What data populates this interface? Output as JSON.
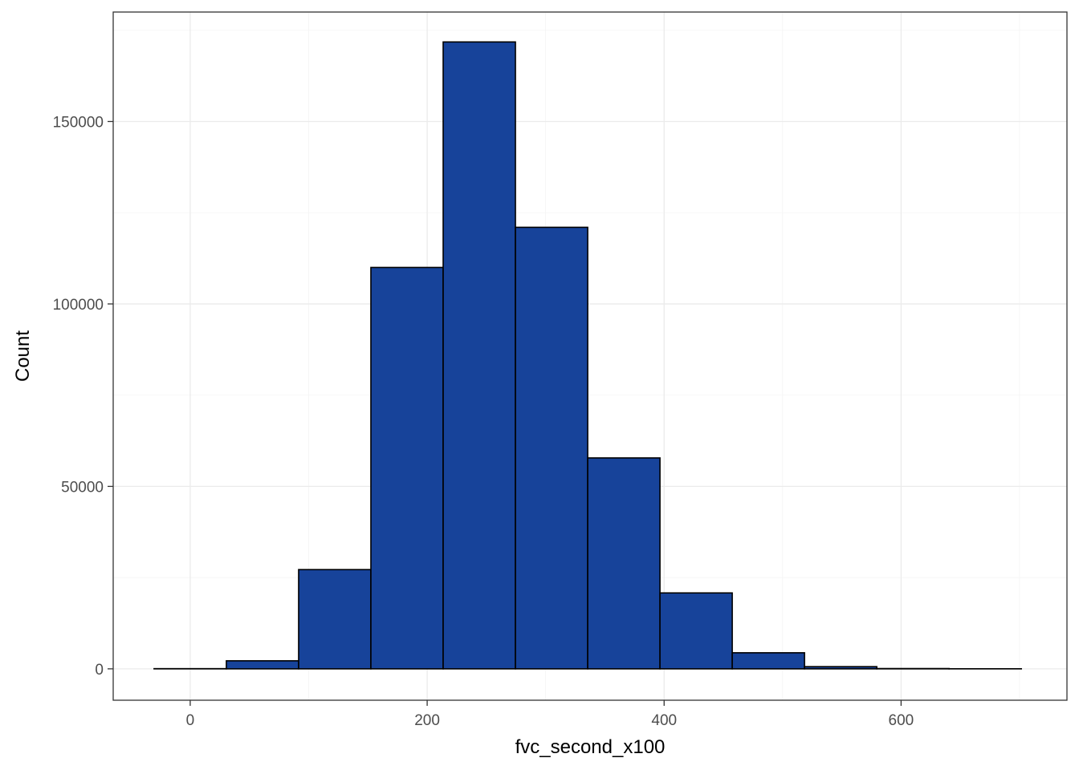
{
  "chart_data": {
    "type": "bar",
    "subtype": "histogram",
    "xlabel": "fvc_second_x100",
    "ylabel": "Count",
    "xlim": [
      -65,
      740
    ],
    "ylim": [
      -8600,
      180000
    ],
    "x_ticks": [
      0,
      200,
      400,
      600
    ],
    "y_ticks": [
      0,
      50000,
      100000,
      150000
    ],
    "x_tick_labels": [
      "0",
      "200",
      "400",
      "600"
    ],
    "y_tick_labels": [
      "0",
      "50000",
      "100000",
      "150000"
    ],
    "grid": true,
    "legend": "none",
    "bins": [
      {
        "x0": -30.5,
        "x1": 30.5,
        "count": 50
      },
      {
        "x0": 30.5,
        "x1": 91.5,
        "count": 2200
      },
      {
        "x0": 91.5,
        "x1": 152.5,
        "count": 27200
      },
      {
        "x0": 152.5,
        "x1": 213.5,
        "count": 110000
      },
      {
        "x0": 213.5,
        "x1": 274.5,
        "count": 171800
      },
      {
        "x0": 274.5,
        "x1": 335.5,
        "count": 121000
      },
      {
        "x0": 335.5,
        "x1": 396.5,
        "count": 57800
      },
      {
        "x0": 396.5,
        "x1": 457.5,
        "count": 20800
      },
      {
        "x0": 457.5,
        "x1": 518.5,
        "count": 4400
      },
      {
        "x0": 518.5,
        "x1": 579.5,
        "count": 600
      },
      {
        "x0": 579.5,
        "x1": 640.5,
        "count": 80
      },
      {
        "x0": 640.5,
        "x1": 701.5,
        "count": 20
      }
    ],
    "colors": {
      "fill": "#17439a",
      "outline": "#000000"
    }
  }
}
